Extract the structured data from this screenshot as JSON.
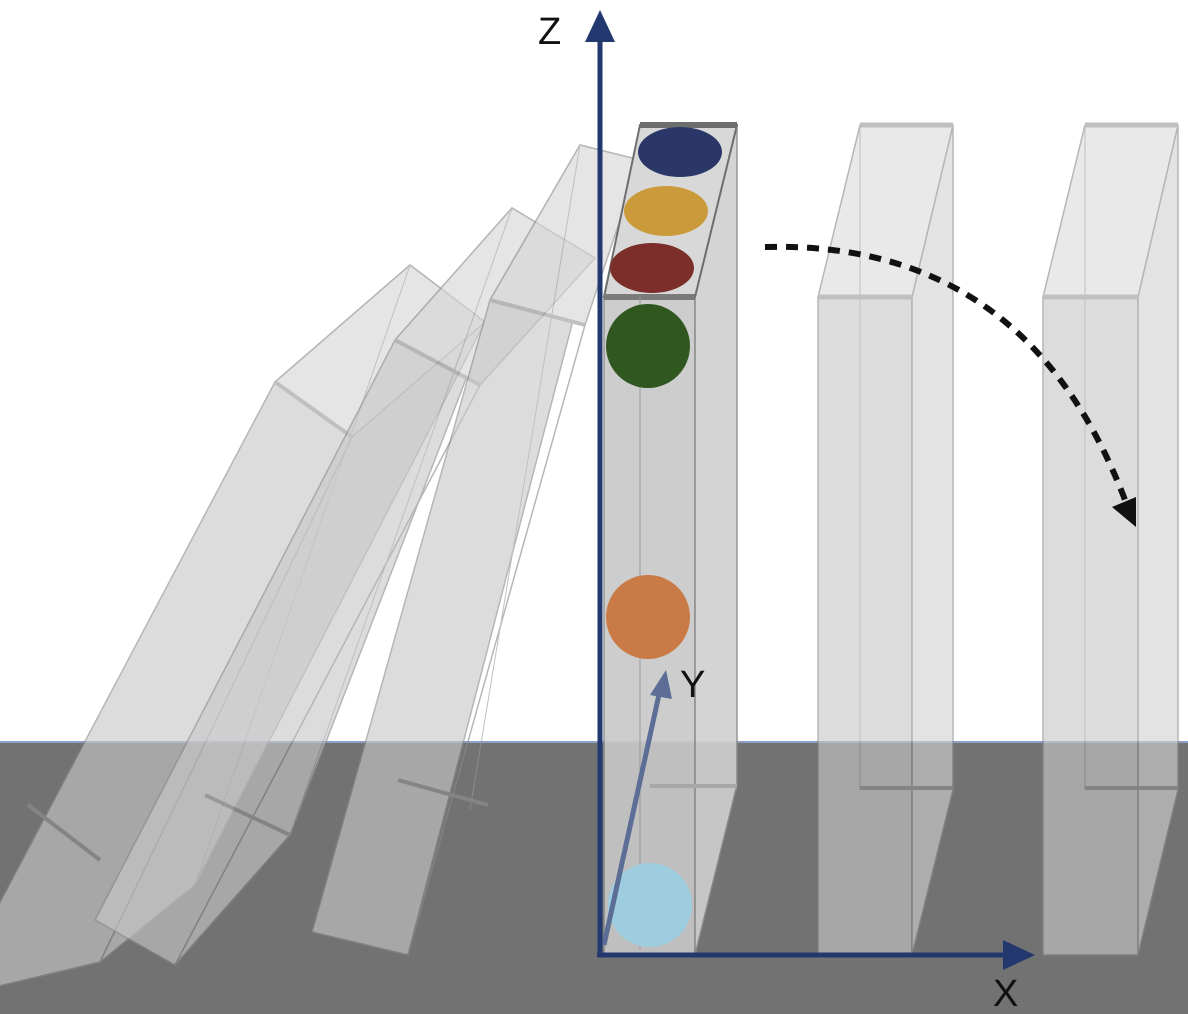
{
  "axes": {
    "z_label": "Z",
    "y_label": "Y",
    "x_label": "X"
  },
  "colors": {
    "background": "#ffffff",
    "floor": "#727272",
    "floor_edge": "#8ca0c8",
    "axis": "#22386e",
    "y_axis": "#5c6e95",
    "block_fill": "#c8c8c8",
    "block_stroke": "#8a8a8a",
    "rotation_arrow": "#111111"
  },
  "markers": [
    {
      "name": "navy-marker",
      "color": "#2b3769"
    },
    {
      "name": "gold-marker",
      "color": "#cb9a3b"
    },
    {
      "name": "dark-red-marker",
      "color": "#7b2e2a"
    },
    {
      "name": "dark-green-marker",
      "color": "#2f571f"
    },
    {
      "name": "orange-marker",
      "color": "#c97a46"
    },
    {
      "name": "light-blue-marker",
      "color": "#9fcde0"
    }
  ]
}
